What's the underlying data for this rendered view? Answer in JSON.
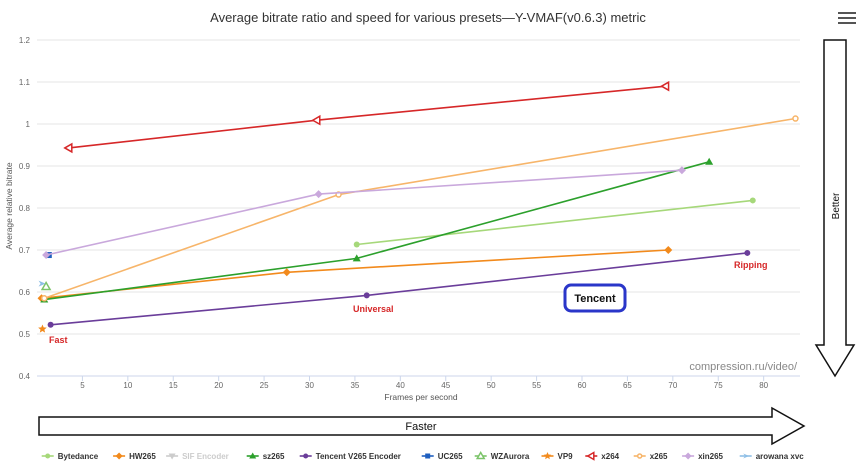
{
  "chart_data": {
    "type": "line",
    "title": "Average bitrate ratio and speed for various presets—Y-VMAF(v0.6.3) metric",
    "xlabel": "Frames per second",
    "ylabel": "Average relative bitrate",
    "xlim": [
      0,
      84
    ],
    "ylim": [
      0.4,
      1.2
    ],
    "xticks": [
      5,
      10,
      15,
      20,
      25,
      30,
      35,
      40,
      45,
      50,
      55,
      60,
      65,
      70,
      75,
      80
    ],
    "yticks": [
      0.4,
      0.5,
      0.6,
      0.7,
      0.8,
      0.9,
      1,
      1.1,
      1.2
    ],
    "legend_position": "bottom",
    "watermark": "compression.ru/video/",
    "annotations": {
      "fast": "Fast",
      "universal": "Universal",
      "ripping": "Ripping",
      "tencent": "Tencent",
      "better": "Better",
      "faster": "Faster"
    },
    "series": [
      {
        "name": "Bytedance",
        "color": "#a6d87a",
        "marker": "circle",
        "visible": true,
        "x": [
          35.2,
          78.8
        ],
        "y": [
          0.713,
          0.818
        ]
      },
      {
        "name": "HW265",
        "color": "#f28a1c",
        "marker": "diamond",
        "visible": true,
        "x": [
          0.5,
          27.5,
          69.5
        ],
        "y": [
          0.585,
          0.647,
          0.7
        ]
      },
      {
        "name": "SIF Encoder",
        "color": "#cfcfcf",
        "marker": "triangle-down",
        "visible": false,
        "x": [],
        "y": []
      },
      {
        "name": "sz265",
        "color": "#2ca02c",
        "marker": "triangle",
        "visible": true,
        "x": [
          0.8,
          35.2,
          74
        ],
        "y": [
          0.582,
          0.68,
          0.91
        ]
      },
      {
        "name": "Tencent V265 Encoder",
        "color": "#6a3d9a",
        "marker": "circle",
        "visible": true,
        "x": [
          1.5,
          36.3,
          78.2
        ],
        "y": [
          0.522,
          0.592,
          0.693
        ]
      },
      {
        "name": "UC265",
        "color": "#1f5fbf",
        "marker": "square",
        "visible": true,
        "x": [
          1.3
        ],
        "y": [
          0.688
        ]
      },
      {
        "name": "WZAurora",
        "color": "#7cc46a",
        "marker": "triangle-open",
        "visible": true,
        "x": [
          1.0
        ],
        "y": [
          0.613
        ]
      },
      {
        "name": "VP9",
        "color": "#f28a1c",
        "marker": "star",
        "visible": true,
        "x": [
          0.6
        ],
        "y": [
          0.512
        ]
      },
      {
        "name": "x264",
        "color": "#d62728",
        "marker": "triangle-left",
        "visible": true,
        "x": [
          3.5,
          30.8,
          69.2
        ],
        "y": [
          0.943,
          1.009,
          1.09
        ]
      },
      {
        "name": "x265",
        "color": "#f7b56a",
        "marker": "circle-open",
        "visible": true,
        "x": [
          0.8,
          33.2,
          83.5
        ],
        "y": [
          0.585,
          0.832,
          1.013
        ]
      },
      {
        "name": "xin265",
        "color": "#c9a8dc",
        "marker": "diamond",
        "visible": true,
        "x": [
          1.0,
          31.0,
          71.0
        ],
        "y": [
          0.688,
          0.833,
          0.89
        ]
      },
      {
        "name": "arowana xvc",
        "color": "#8fbfe6",
        "marker": "arrow",
        "visible": true,
        "x": [
          0.5
        ],
        "y": [
          0.62
        ]
      }
    ]
  }
}
